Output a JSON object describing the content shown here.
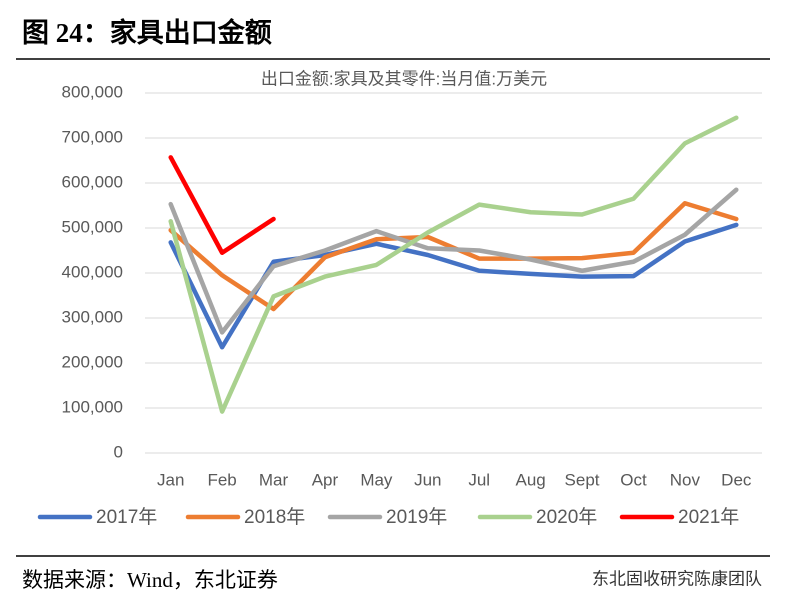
{
  "chart_data": {
    "type": "line",
    "title": "图 24：家具出口金额",
    "subtitle": "出口金额:家具及其零件:当月值:万美元",
    "categories": [
      "Jan",
      "Feb",
      "Mar",
      "Apr",
      "May",
      "Jun",
      "Jul",
      "Aug",
      "Sept",
      "Oct",
      "Nov",
      "Dec"
    ],
    "series": [
      {
        "name": "2017年",
        "color": "#4472c4",
        "values": [
          468000,
          235000,
          425000,
          440000,
          465000,
          440000,
          405000,
          398000,
          392000,
          393000,
          470000,
          507000
        ]
      },
      {
        "name": "2018年",
        "color": "#ed7d31",
        "values": [
          495000,
          395000,
          320000,
          435000,
          475000,
          480000,
          432000,
          432000,
          433000,
          445000,
          555000,
          520000
        ]
      },
      {
        "name": "2019年",
        "color": "#a5a5a5",
        "values": [
          553000,
          268000,
          415000,
          450000,
          493000,
          455000,
          450000,
          430000,
          405000,
          425000,
          485000,
          585000
        ]
      },
      {
        "name": "2020年",
        "color": "#a9d18e",
        "values": [
          515000,
          92000,
          348000,
          392000,
          418000,
          490000,
          552000,
          535000,
          530000,
          565000,
          688000,
          745000
        ]
      },
      {
        "name": "2021年",
        "color": "#ff0000",
        "values": [
          657000,
          445000,
          520000,
          null,
          null,
          null,
          null,
          null,
          null,
          null,
          null,
          null
        ]
      }
    ],
    "ylim": [
      0,
      800000
    ],
    "yticks": [
      0,
      {
        "value": 100000,
        "label": "100,000"
      },
      {
        "value": 200000,
        "label": "200,000"
      },
      {
        "value": 300000,
        "label": "300,000"
      },
      {
        "value": 400000,
        "label": "400,000"
      },
      {
        "value": 500000,
        "label": "500,000"
      },
      {
        "value": 600000,
        "label": "600,000"
      },
      {
        "value": 700000,
        "label": "700,000"
      },
      {
        "value": 800000,
        "label": "800,000"
      }
    ],
    "grid": true,
    "legend": "bottom"
  },
  "source": "数据来源：Wind，东北证券",
  "watermark": "东北固收研究陈康团队"
}
